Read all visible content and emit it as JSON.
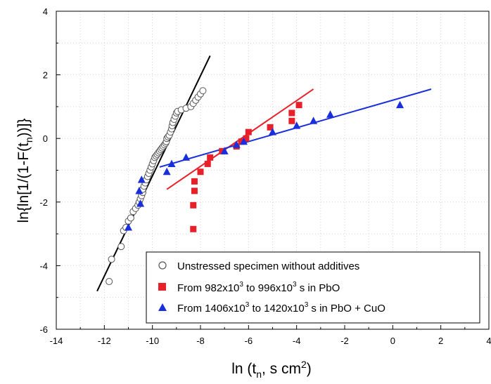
{
  "chart_data": {
    "type": "scatter",
    "xlabel": "ln (t_n, s cm^2)",
    "ylabel": "ln{ln[1/(1-F(t_n))]}",
    "xlim": [
      -14,
      4
    ],
    "ylim": [
      -6,
      4
    ],
    "xticks": [
      -14,
      -12,
      -10,
      -8,
      -6,
      -4,
      -2,
      0,
      2,
      4
    ],
    "yticks": [
      -6,
      -4,
      -2,
      0,
      2,
      4
    ],
    "grid": true,
    "legend_position": "bottom-right",
    "series": [
      {
        "name": "Unstressed specimen without additives",
        "marker": "open-circle",
        "color": "#555555",
        "points": [
          [
            -11.8,
            -4.5
          ],
          [
            -11.7,
            -3.8
          ],
          [
            -11.3,
            -3.4
          ],
          [
            -11.2,
            -2.9
          ],
          [
            -11.1,
            -2.8
          ],
          [
            -11.0,
            -2.6
          ],
          [
            -10.9,
            -2.5
          ],
          [
            -10.8,
            -2.3
          ],
          [
            -10.7,
            -2.2
          ],
          [
            -10.6,
            -2.1
          ],
          [
            -10.55,
            -2.0
          ],
          [
            -10.5,
            -1.9
          ],
          [
            -10.45,
            -1.8
          ],
          [
            -10.4,
            -1.7
          ],
          [
            -10.4,
            -1.6
          ],
          [
            -10.35,
            -1.5
          ],
          [
            -10.3,
            -1.4
          ],
          [
            -10.25,
            -1.3
          ],
          [
            -10.2,
            -1.2
          ],
          [
            -10.15,
            -1.1
          ],
          [
            -10.1,
            -1.0
          ],
          [
            -10.05,
            -0.9
          ],
          [
            -10.0,
            -0.8
          ],
          [
            -9.95,
            -0.7
          ],
          [
            -9.9,
            -0.6
          ],
          [
            -9.85,
            -0.55
          ],
          [
            -9.8,
            -0.5
          ],
          [
            -9.75,
            -0.45
          ],
          [
            -9.7,
            -0.4
          ],
          [
            -9.65,
            -0.35
          ],
          [
            -9.6,
            -0.3
          ],
          [
            -9.55,
            -0.25
          ],
          [
            -9.5,
            -0.2
          ],
          [
            -9.45,
            -0.15
          ],
          [
            -9.42,
            -0.1
          ],
          [
            -9.4,
            0.0
          ],
          [
            -9.35,
            0.05
          ],
          [
            -9.3,
            0.1
          ],
          [
            -9.25,
            0.2
          ],
          [
            -9.2,
            0.3
          ],
          [
            -9.18,
            0.4
          ],
          [
            -9.15,
            0.5
          ],
          [
            -9.1,
            0.6
          ],
          [
            -9.05,
            0.7
          ],
          [
            -9.0,
            0.8
          ],
          [
            -8.95,
            0.85
          ],
          [
            -8.8,
            0.9
          ],
          [
            -8.6,
            0.95
          ],
          [
            -8.4,
            1.0
          ],
          [
            -8.3,
            1.1
          ],
          [
            -8.2,
            1.2
          ],
          [
            -8.1,
            1.3
          ],
          [
            -8.0,
            1.4
          ],
          [
            -7.9,
            1.5
          ]
        ],
        "fit": [
          [
            -12.3,
            -4.8
          ],
          [
            -7.6,
            2.6
          ]
        ]
      },
      {
        "name": "From 982x10^3 to 996x10^3 s in PbO",
        "marker": "square",
        "color": "#e8202a",
        "points": [
          [
            -8.3,
            -2.85
          ],
          [
            -8.3,
            -2.1
          ],
          [
            -8.25,
            -1.65
          ],
          [
            -8.25,
            -1.35
          ],
          [
            -8.0,
            -1.05
          ],
          [
            -7.7,
            -0.8
          ],
          [
            -7.6,
            -0.6
          ],
          [
            -7.1,
            -0.4
          ],
          [
            -6.5,
            -0.25
          ],
          [
            -6.3,
            -0.1
          ],
          [
            -6.1,
            0.0
          ],
          [
            -6.0,
            0.2
          ],
          [
            -5.1,
            0.35
          ],
          [
            -4.2,
            0.55
          ],
          [
            -4.2,
            0.8
          ],
          [
            -3.9,
            1.05
          ]
        ],
        "fit": [
          [
            -9.4,
            -1.6
          ],
          [
            -3.3,
            1.55
          ]
        ]
      },
      {
        "name": "From 1406x10^3 to 1420x10^3 s in PbO + CuO",
        "marker": "triangle",
        "color": "#1a2fdc",
        "points": [
          [
            -10.5,
            -2.05
          ],
          [
            -10.55,
            -1.65
          ],
          [
            -10.45,
            -1.3
          ],
          [
            -11.0,
            -2.8
          ],
          [
            -9.4,
            -1.05
          ],
          [
            -9.2,
            -0.8
          ],
          [
            -8.6,
            -0.6
          ],
          [
            -7.0,
            -0.4
          ],
          [
            -6.5,
            -0.2
          ],
          [
            -6.2,
            -0.1
          ],
          [
            -5.0,
            0.2
          ],
          [
            -4.0,
            0.4
          ],
          [
            -3.3,
            0.55
          ],
          [
            -2.6,
            0.75
          ],
          [
            0.3,
            1.05
          ]
        ],
        "fit": [
          [
            -9.7,
            -0.9
          ],
          [
            1.6,
            1.55
          ]
        ]
      }
    ]
  }
}
